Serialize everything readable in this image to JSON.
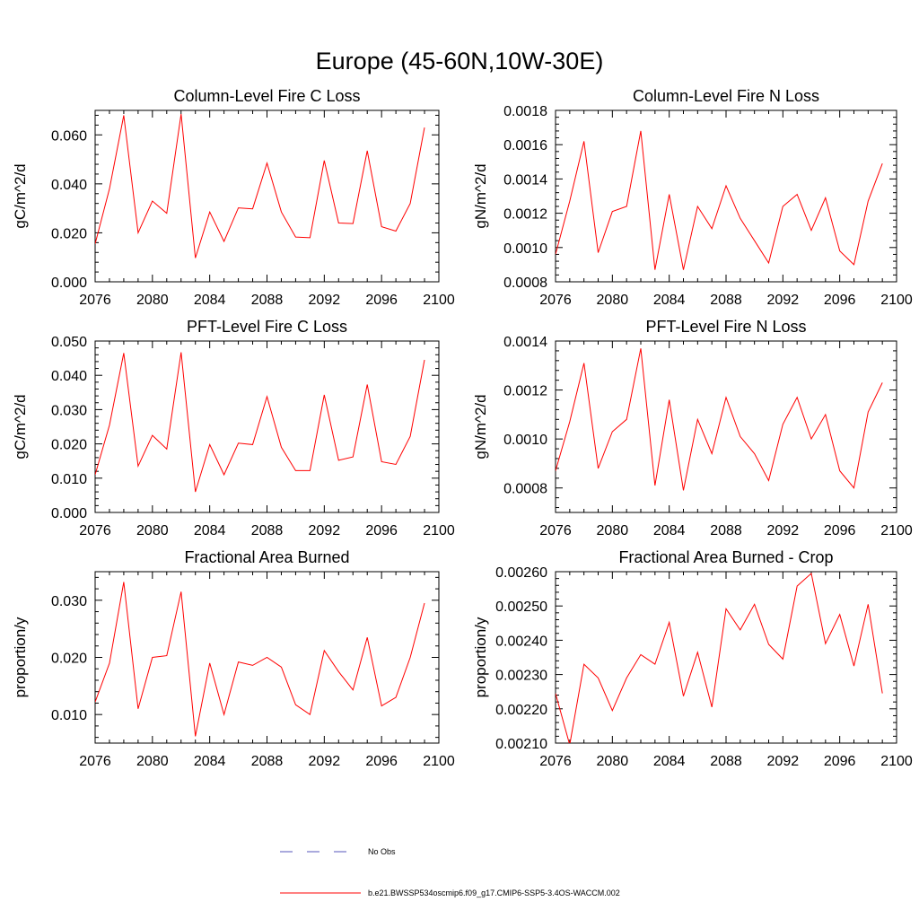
{
  "suptitle": "Europe (45-60N,10W-30E)",
  "line_color": "#ff0000",
  "obs_color": "#5555bb",
  "legend": {
    "obs_label": "No Obs",
    "model_label": "b.e21.BWSSP534oscmip6.f09_g17.CMIP6-SSP5-3.4OS-WACCM.002"
  },
  "chart_data": [
    {
      "type": "line",
      "title": "Column-Level Fire C Loss",
      "ylabel": "gC/m^2/d",
      "xlim": [
        2076,
        2100
      ],
      "ylim": [
        0.0,
        0.07
      ],
      "xticks": [
        "2076",
        "2080",
        "2084",
        "2088",
        "2092",
        "2096",
        "2100"
      ],
      "yticks": [
        "0.000",
        "0.020",
        "0.040",
        "0.060"
      ],
      "x": [
        2076,
        2077,
        2078,
        2079,
        2080,
        2081,
        2082,
        2083,
        2084,
        2085,
        2086,
        2087,
        2088,
        2089,
        2090,
        2091,
        2092,
        2093,
        2094,
        2095,
        2096,
        2097,
        2098,
        2099
      ],
      "series": [
        {
          "values": [
            0.0155,
            0.038,
            0.068,
            0.02,
            0.033,
            0.028,
            0.0685,
            0.0097,
            0.0285,
            0.0165,
            0.0302,
            0.0298,
            0.0485,
            0.0285,
            0.0183,
            0.018,
            0.0495,
            0.024,
            0.0238,
            0.0535,
            0.0225,
            0.0207,
            0.032,
            0.063
          ]
        }
      ]
    },
    {
      "type": "line",
      "title": "Column-Level Fire N Loss",
      "ylabel": "gN/m^2/d",
      "xlim": [
        2076,
        2100
      ],
      "ylim": [
        0.0008,
        0.0018
      ],
      "xticks": [
        "2076",
        "2080",
        "2084",
        "2088",
        "2092",
        "2096",
        "2100"
      ],
      "yticks": [
        "0.0008",
        "0.0010",
        "0.0012",
        "0.0014",
        "0.0016",
        "0.0018"
      ],
      "x": [
        2076,
        2077,
        2078,
        2079,
        2080,
        2081,
        2082,
        2083,
        2084,
        2085,
        2086,
        2087,
        2088,
        2089,
        2090,
        2091,
        2092,
        2093,
        2094,
        2095,
        2096,
        2097,
        2098,
        2099
      ],
      "series": [
        {
          "values": [
            0.00096,
            0.00127,
            0.00162,
            0.00097,
            0.00121,
            0.00124,
            0.00168,
            0.00087,
            0.00131,
            0.00087,
            0.00124,
            0.00111,
            0.00136,
            0.00117,
            0.00104,
            0.00091,
            0.00124,
            0.00131,
            0.0011,
            0.00129,
            0.00098,
            0.0009,
            0.00127,
            0.00149
          ]
        }
      ]
    },
    {
      "type": "line",
      "title": "PFT-Level Fire C Loss",
      "ylabel": "gC/m^2/d",
      "xlim": [
        2076,
        2100
      ],
      "ylim": [
        0.0,
        0.05
      ],
      "xticks": [
        "2076",
        "2080",
        "2084",
        "2088",
        "2092",
        "2096",
        "2100"
      ],
      "yticks": [
        "0.000",
        "0.010",
        "0.020",
        "0.030",
        "0.040",
        "0.050"
      ],
      "x": [
        2076,
        2077,
        2078,
        2079,
        2080,
        2081,
        2082,
        2083,
        2084,
        2085,
        2086,
        2087,
        2088,
        2089,
        2090,
        2091,
        2092,
        2093,
        2094,
        2095,
        2096,
        2097,
        2098,
        2099
      ],
      "series": [
        {
          "values": [
            0.011,
            0.0255,
            0.0465,
            0.0135,
            0.0225,
            0.0185,
            0.0467,
            0.006,
            0.0198,
            0.011,
            0.0202,
            0.0198,
            0.0338,
            0.019,
            0.0122,
            0.0122,
            0.0343,
            0.0152,
            0.0162,
            0.0373,
            0.0148,
            0.014,
            0.0222,
            0.0445
          ]
        }
      ]
    },
    {
      "type": "line",
      "title": "PFT-Level Fire N Loss",
      "ylabel": "gN/m^2/d",
      "xlim": [
        2076,
        2100
      ],
      "ylim": [
        0.0007,
        0.0014
      ],
      "xticks": [
        "2076",
        "2080",
        "2084",
        "2088",
        "2092",
        "2096",
        "2100"
      ],
      "yticks": [
        "0.0008",
        "0.0010",
        "0.0012",
        "0.0014"
      ],
      "x": [
        2076,
        2077,
        2078,
        2079,
        2080,
        2081,
        2082,
        2083,
        2084,
        2085,
        2086,
        2087,
        2088,
        2089,
        2090,
        2091,
        2092,
        2093,
        2094,
        2095,
        2096,
        2097,
        2098,
        2099
      ],
      "series": [
        {
          "values": [
            0.00087,
            0.00107,
            0.00131,
            0.00088,
            0.00103,
            0.00108,
            0.00137,
            0.00081,
            0.00116,
            0.00079,
            0.00108,
            0.00094,
            0.00117,
            0.00101,
            0.00094,
            0.00083,
            0.00106,
            0.00117,
            0.001,
            0.0011,
            0.00087,
            0.0008,
            0.00111,
            0.00123
          ]
        }
      ]
    },
    {
      "type": "line",
      "title": "Fractional Area Burned",
      "ylabel": "proportion/y",
      "xlim": [
        2076,
        2100
      ],
      "ylim": [
        0.005,
        0.035
      ],
      "xticks": [
        "2076",
        "2080",
        "2084",
        "2088",
        "2092",
        "2096",
        "2100"
      ],
      "yticks": [
        "0.010",
        "0.020",
        "0.030"
      ],
      "x": [
        2076,
        2077,
        2078,
        2079,
        2080,
        2081,
        2082,
        2083,
        2084,
        2085,
        2086,
        2087,
        2088,
        2089,
        2090,
        2091,
        2092,
        2093,
        2094,
        2095,
        2096,
        2097,
        2098,
        2099
      ],
      "series": [
        {
          "values": [
            0.0122,
            0.019,
            0.0332,
            0.011,
            0.02,
            0.0203,
            0.0315,
            0.0062,
            0.019,
            0.01,
            0.0192,
            0.0186,
            0.02,
            0.0183,
            0.0117,
            0.01,
            0.0212,
            0.0175,
            0.0143,
            0.0235,
            0.0115,
            0.013,
            0.02,
            0.0295
          ]
        }
      ]
    },
    {
      "type": "line",
      "title": "Fractional Area Burned - Crop",
      "ylabel": "proportion/y",
      "xlim": [
        2076,
        2100
      ],
      "ylim": [
        0.0021,
        0.0026
      ],
      "xticks": [
        "2076",
        "2080",
        "2084",
        "2088",
        "2092",
        "2096",
        "2100"
      ],
      "yticks": [
        "0.00210",
        "0.00220",
        "0.00230",
        "0.00240",
        "0.00250",
        "0.00260"
      ],
      "x": [
        2076,
        2077,
        2078,
        2079,
        2080,
        2081,
        2082,
        2083,
        2084,
        2085,
        2086,
        2087,
        2088,
        2089,
        2090,
        2091,
        2092,
        2093,
        2094,
        2095,
        2096,
        2097,
        2098,
        2099
      ],
      "series": [
        {
          "values": [
            0.002245,
            0.002095,
            0.00233,
            0.00229,
            0.002195,
            0.00229,
            0.002358,
            0.00233,
            0.002452,
            0.002237,
            0.002365,
            0.002205,
            0.002492,
            0.00243,
            0.002505,
            0.002388,
            0.002345,
            0.002558,
            0.002595,
            0.00239,
            0.002475,
            0.002325,
            0.002505,
            0.002245
          ]
        }
      ]
    }
  ]
}
